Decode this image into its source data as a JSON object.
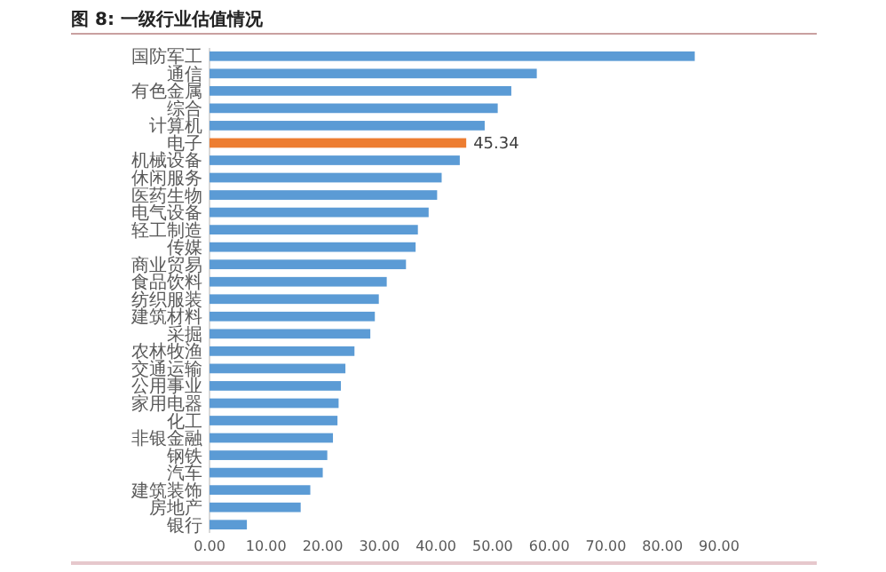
{
  "chart_data": {
    "type": "bar",
    "orientation": "horizontal",
    "title": "图 8: 一级行业估值情况",
    "categories": [
      "国防军工",
      "通信",
      "有色金属",
      "综合",
      "计算机",
      "电子",
      "机械设备",
      "休闲服务",
      "医药生物",
      "电气设备",
      "轻工制造",
      "传媒",
      "商业贸易",
      "食品饮料",
      "纺织服装",
      "建筑材料",
      "采掘",
      "农林牧渔",
      "交通运输",
      "公用事业",
      "家用电器",
      "化工",
      "非银金融",
      "钢铁",
      "汽车",
      "建筑装饰",
      "房地产",
      "银行"
    ],
    "values": [
      85.7,
      57.8,
      53.3,
      50.9,
      48.6,
      45.34,
      44.2,
      41.0,
      40.2,
      38.7,
      36.8,
      36.4,
      34.7,
      31.3,
      29.9,
      29.2,
      28.4,
      25.6,
      24.0,
      23.2,
      22.8,
      22.6,
      21.8,
      20.8,
      20.0,
      17.8,
      16.1,
      6.6
    ],
    "colors": [
      "#5b9bd5",
      "#5b9bd5",
      "#5b9bd5",
      "#5b9bd5",
      "#5b9bd5",
      "#ed7d31",
      "#5b9bd5",
      "#5b9bd5",
      "#5b9bd5",
      "#5b9bd5",
      "#5b9bd5",
      "#5b9bd5",
      "#5b9bd5",
      "#5b9bd5",
      "#5b9bd5",
      "#5b9bd5",
      "#5b9bd5",
      "#5b9bd5",
      "#5b9bd5",
      "#5b9bd5",
      "#5b9bd5",
      "#5b9bd5",
      "#5b9bd5",
      "#5b9bd5",
      "#5b9bd5",
      "#5b9bd5",
      "#5b9bd5",
      "#5b9bd5"
    ],
    "value_labels": [
      null,
      null,
      null,
      null,
      null,
      "45.34",
      null,
      null,
      null,
      null,
      null,
      null,
      null,
      null,
      null,
      null,
      null,
      null,
      null,
      null,
      null,
      null,
      null,
      null,
      null,
      null,
      null,
      null
    ],
    "xlim": [
      0,
      90
    ],
    "xticks": [
      {
        "value": 0,
        "label": "0.00"
      },
      {
        "value": 10,
        "label": "10.00"
      },
      {
        "value": 20,
        "label": "20.00"
      },
      {
        "value": 30,
        "label": "30.00"
      },
      {
        "value": 40,
        "label": "40.00"
      },
      {
        "value": 50,
        "label": "50.00"
      },
      {
        "value": 60,
        "label": "60.00"
      },
      {
        "value": 70,
        "label": "70.00"
      },
      {
        "value": 80,
        "label": "80.00"
      },
      {
        "value": 90,
        "label": "90.00"
      }
    ],
    "grid": false
  }
}
